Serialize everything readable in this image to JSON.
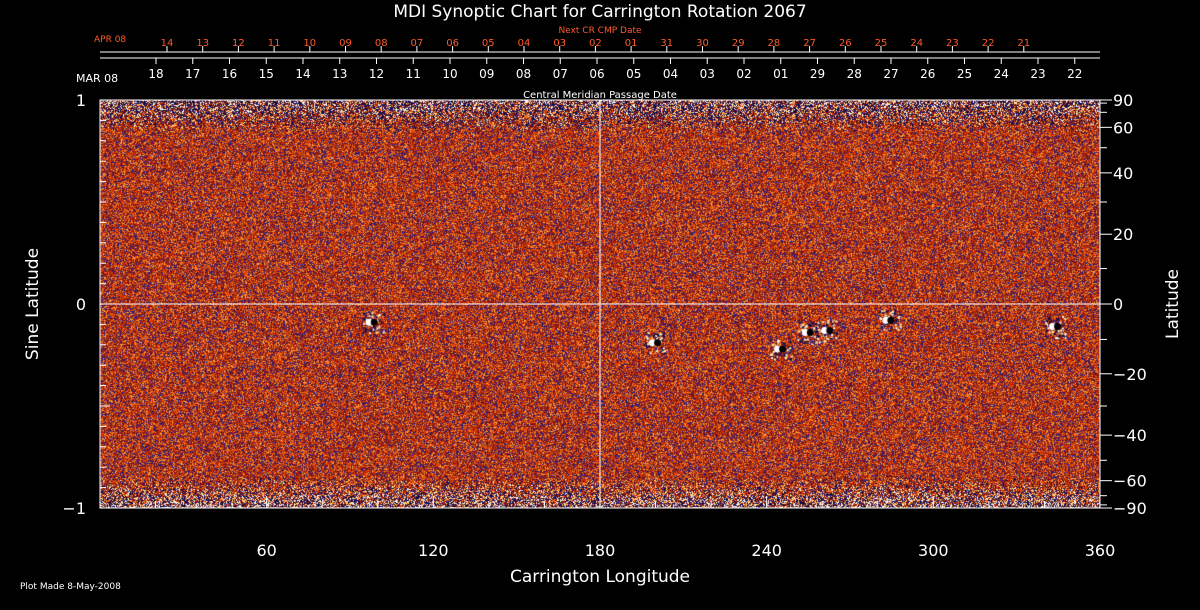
{
  "chart_data": {
    "type": "heatmap",
    "title": "MDI Synoptic Chart for Carrington Rotation 2067",
    "xlabel": "Carrington Longitude",
    "ylabel_left": "Sine Latitude",
    "ylabel_right": "Latitude",
    "xlim": [
      0,
      360
    ],
    "ylim": [
      -1,
      1
    ],
    "x_ticks": [
      "60",
      "120",
      "180",
      "240",
      "300",
      "360"
    ],
    "x_tick_values": [
      60,
      120,
      180,
      240,
      300,
      360
    ],
    "y_left_ticks": [
      "1",
      "0",
      "−1"
    ],
    "y_left_tick_values": [
      1,
      0,
      -1
    ],
    "y_right_ticks": [
      "90",
      "60",
      "40",
      "20",
      "0",
      "−20",
      "−40",
      "−60",
      "−90"
    ],
    "y_right_tick_values": [
      90,
      60,
      40,
      20,
      0,
      -20,
      -40,
      -60,
      -90
    ],
    "top_axis": {
      "next_cr_label": "Next CR CMP Date",
      "next_cr_month": "APR 08",
      "next_cr_dates": [
        "14",
        "13",
        "12",
        "11",
        "10",
        "09",
        "08",
        "07",
        "06",
        "05",
        "04",
        "03",
        "02",
        "01",
        "31",
        "30",
        "29",
        "28",
        "27",
        "26",
        "25",
        "24",
        "23",
        "22",
        "21"
      ],
      "cmp_month": "MAR 08",
      "cmp_dates": [
        "18",
        "17",
        "16",
        "15",
        "14",
        "13",
        "12",
        "11",
        "10",
        "09",
        "08",
        "07",
        "06",
        "05",
        "04",
        "03",
        "02",
        "01",
        "29",
        "28",
        "27",
        "26",
        "25",
        "24",
        "23",
        "22"
      ],
      "cmp_label": "Central Meridian Passage Date"
    },
    "active_regions": [
      {
        "lon": 98,
        "sinlat": -0.09
      },
      {
        "lon": 200,
        "sinlat": -0.19
      },
      {
        "lon": 245,
        "sinlat": -0.22
      },
      {
        "lon": 255,
        "sinlat": -0.14
      },
      {
        "lon": 262,
        "sinlat": -0.13
      },
      {
        "lon": 284,
        "sinlat": -0.08
      },
      {
        "lon": 344,
        "sinlat": -0.11
      }
    ],
    "grid": true,
    "colormap": [
      "#0a0a4a",
      "#2a1e7e",
      "#7a1818",
      "#c82a00",
      "#e8560a",
      "#f8a040",
      "#ffe890",
      "#ffffff"
    ]
  },
  "footer": {
    "plot_made": "Plot Made  8-May-2008"
  },
  "colors": {
    "background": "#000000",
    "axis": "#ffffff",
    "next_cr": "#ff5a2a"
  }
}
